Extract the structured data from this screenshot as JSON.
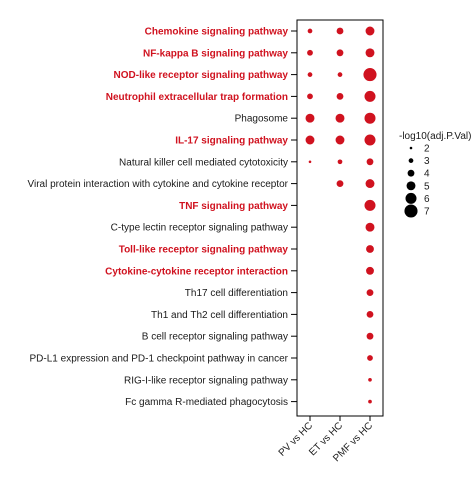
{
  "chart_data": {
    "type": "dot",
    "categories": [
      "Chemokine signaling pathway",
      "NF-kappa B signaling pathway",
      "NOD-like receptor signaling pathway",
      "Neutrophil extracellular trap formation",
      "Phagosome",
      "IL-17 signaling pathway",
      "Natural killer cell mediated cytotoxicity",
      "Viral protein interaction with cytokine and cytokine receptor",
      "TNF signaling pathway",
      "C-type lectin receptor signaling pathway",
      "Toll-like receptor signaling pathway",
      "Cytokine-cytokine receptor interaction",
      "Th17 cell differentiation",
      "Th1 and Th2 cell differentiation",
      "B cell receptor signaling pathway",
      "PD-L1 expression and PD-1 checkpoint pathway in cancer",
      "RIG-I-like receptor signaling pathway",
      "Fc gamma R-mediated phagocytosis"
    ],
    "highlighted_categories": [
      "Chemokine signaling pathway",
      "NF-kappa B signaling pathway",
      "NOD-like receptor signaling pathway",
      "Neutrophil extracellular trap formation",
      "IL-17 signaling pathway",
      "TNF signaling pathway",
      "Toll-like receptor signaling pathway",
      "Cytokine-cytokine receptor interaction"
    ],
    "groups": [
      "PV vs HC",
      "ET vs HC",
      "PMF vs HC"
    ],
    "series": [
      {
        "name": "PV vs HC",
        "values": [
          3,
          3.5,
          3,
          3.5,
          5,
          5,
          2,
          null,
          null,
          null,
          null,
          null,
          null,
          null,
          null,
          null,
          null,
          null
        ]
      },
      {
        "name": "ET vs HC",
        "values": [
          4,
          4,
          3,
          4,
          5,
          5,
          3,
          4,
          null,
          null,
          null,
          null,
          null,
          null,
          null,
          null,
          null,
          null
        ]
      },
      {
        "name": "PMF vs HC",
        "values": [
          5,
          5,
          7,
          6,
          6,
          6,
          4,
          5,
          6,
          5,
          4.5,
          4.5,
          4,
          4,
          4,
          3.5,
          2.5,
          2.5
        ]
      }
    ],
    "legend": {
      "title": "-log10(adj.P.Val)",
      "values": [
        2,
        3,
        4,
        5,
        6,
        7
      ],
      "placement": "right"
    },
    "colors": {
      "highlight": "#d0121f",
      "dot": "#d0121f",
      "text": "#1a1a1a"
    }
  }
}
